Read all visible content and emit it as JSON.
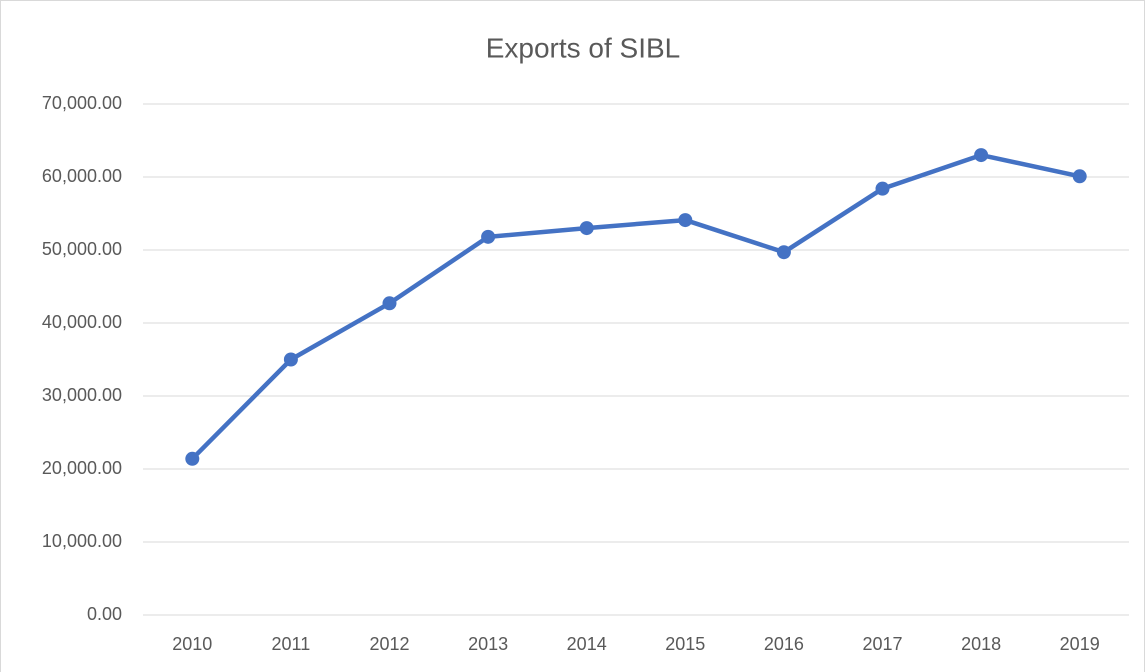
{
  "chart_data": {
    "type": "line",
    "title": "Exports of SIBL",
    "categories": [
      "2010",
      "2011",
      "2012",
      "2013",
      "2014",
      "2015",
      "2016",
      "2017",
      "2018",
      "2019"
    ],
    "series": [
      {
        "name": "Exports",
        "color": "#4472c4",
        "values": [
          21400,
          35000,
          42700,
          51800,
          53000,
          54100,
          49700,
          58400,
          63000,
          60100
        ]
      }
    ],
    "ylim": [
      0,
      70000
    ],
    "yticks": [
      {
        "value": 0,
        "label": "0.00"
      },
      {
        "value": 10000,
        "label": "10,000.00"
      },
      {
        "value": 20000,
        "label": "20,000.00"
      },
      {
        "value": 30000,
        "label": "30,000.00"
      },
      {
        "value": 40000,
        "label": "40,000.00"
      },
      {
        "value": 50000,
        "label": "50,000.00"
      },
      {
        "value": 60000,
        "label": "60,000.00"
      },
      {
        "value": 70000,
        "label": "70,000.00"
      }
    ],
    "grid": true
  }
}
